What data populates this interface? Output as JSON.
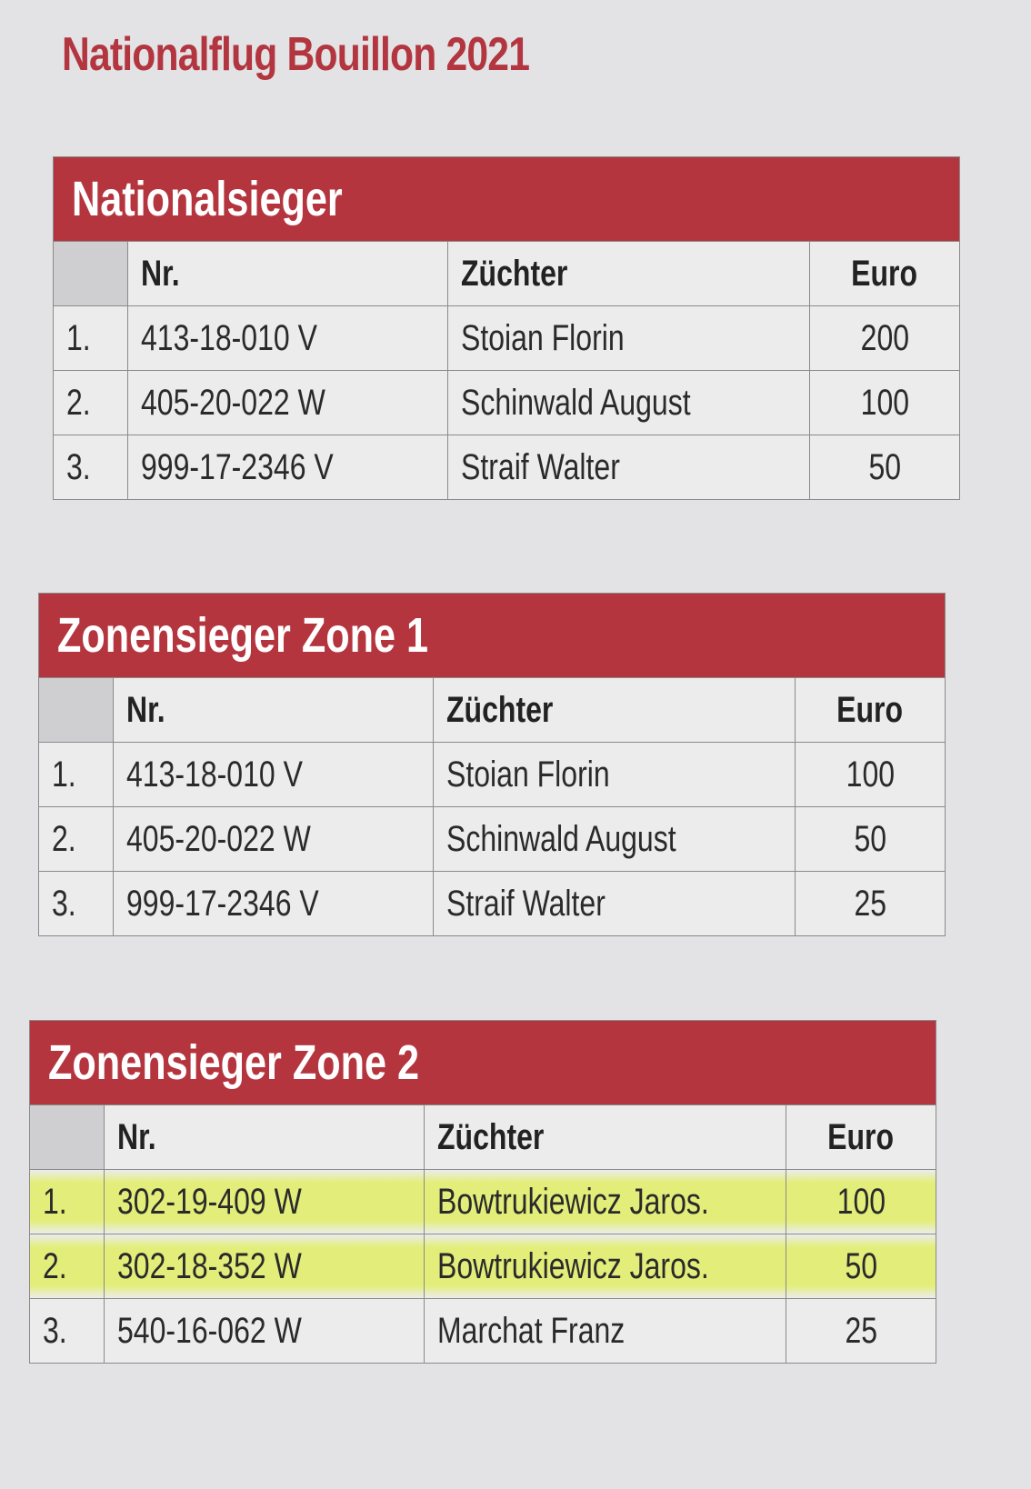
{
  "title": "Nationalflug Bouillon 2021",
  "highlight_color": "#e3ee7a",
  "header_color": "#b5353f",
  "columns": {
    "rank": "",
    "nr": "Nr.",
    "breeder": "Züchter",
    "euro": "Euro"
  },
  "tables": [
    {
      "heading": "Nationalsieger",
      "rows": [
        {
          "rank": "1.",
          "nr": "413-18-010 V",
          "breeder": "Stoian Florin",
          "euro": "200"
        },
        {
          "rank": "2.",
          "nr": "405-20-022 W",
          "breeder": "Schinwald August",
          "euro": "100"
        },
        {
          "rank": "3.",
          "nr": "999-17-2346 V",
          "breeder": "Straif Walter",
          "euro": "50"
        }
      ]
    },
    {
      "heading": "Zonensieger Zone 1",
      "rows": [
        {
          "rank": "1.",
          "nr": "413-18-010 V",
          "breeder": "Stoian Florin",
          "euro": "100"
        },
        {
          "rank": "2.",
          "nr": "405-20-022 W",
          "breeder": "Schinwald August",
          "euro": "50"
        },
        {
          "rank": "3.",
          "nr": "999-17-2346 V",
          "breeder": "Straif Walter",
          "euro": "25"
        }
      ]
    },
    {
      "heading": "Zonensieger Zone 2",
      "rows": [
        {
          "rank": "1.",
          "nr": "302-19-409 W",
          "breeder": "Bowtrukiewicz Jaros.",
          "euro": "100",
          "highlighted": true
        },
        {
          "rank": "2.",
          "nr": "302-18-352 W",
          "breeder": "Bowtrukiewicz Jaros.",
          "euro": "50",
          "highlighted": true
        },
        {
          "rank": "3.",
          "nr": "540-16-062 W",
          "breeder": "Marchat Franz",
          "euro": "25"
        }
      ]
    }
  ]
}
